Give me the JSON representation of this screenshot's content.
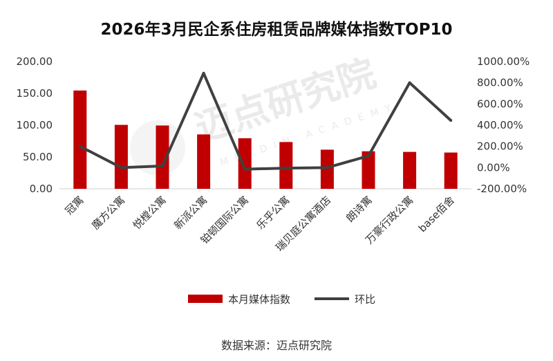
{
  "chart_data": {
    "type": "bar+line",
    "title": "2026年3月民企系住房租赁品牌媒体指数TOP10",
    "categories": [
      "冠寓",
      "魔方公寓",
      "悦樘公寓",
      "新派公寓",
      "铂顿国际公寓",
      "乐乎公寓",
      "瑞贝庭公寓酒店",
      "朗诗寓",
      "万豪行政公寓",
      "base佰舍"
    ],
    "series": [
      {
        "name": "本月媒体指数",
        "type": "bar",
        "axis": "left",
        "color": "#c00000",
        "values": [
          154.5,
          100.5,
          99.5,
          85.5,
          79.5,
          73.5,
          61.5,
          59.0,
          58.0,
          57.0
        ]
      },
      {
        "name": "环比",
        "type": "line",
        "axis": "right",
        "unit": "%",
        "color": "#404040",
        "values": [
          200,
          0,
          15,
          890,
          -15,
          -5,
          0,
          110,
          800,
          445
        ]
      }
    ],
    "y_left": {
      "min": 0,
      "max": 200,
      "ticks": [
        "0.00",
        "50.00",
        "100.00",
        "150.00",
        "200.00"
      ]
    },
    "y_right": {
      "min": -200,
      "max": 1000,
      "ticks": [
        "-200.00%",
        "0.00%",
        "200.00%",
        "400.00%",
        "600.00%",
        "800.00%",
        "1000.00%"
      ]
    },
    "grid": false,
    "legend_position": "bottom"
  },
  "source": "数据来源：迈点研究院",
  "watermark": {
    "main": "迈点研究院",
    "sub": "MEADIN ACADEMY"
  }
}
